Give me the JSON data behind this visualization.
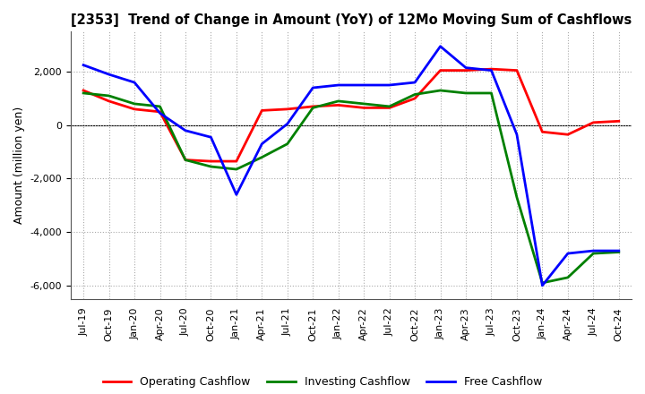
{
  "title": "[2353]  Trend of Change in Amount (YoY) of 12Mo Moving Sum of Cashflows",
  "ylabel": "Amount (million yen)",
  "labels": [
    "Jul-19",
    "Oct-19",
    "Jan-20",
    "Apr-20",
    "Jul-20",
    "Oct-20",
    "Jan-21",
    "Apr-21",
    "Jul-21",
    "Oct-21",
    "Jan-22",
    "Apr-22",
    "Jul-22",
    "Oct-22",
    "Jan-23",
    "Apr-23",
    "Jul-23",
    "Oct-23",
    "Jan-24",
    "Apr-24",
    "Jul-24",
    "Oct-24"
  ],
  "operating": [
    1300,
    900,
    600,
    500,
    -1300,
    -1350,
    -1350,
    550,
    600,
    700,
    750,
    650,
    650,
    1000,
    2050,
    2050,
    2100,
    2050,
    -250,
    -350,
    100,
    150
  ],
  "investing": [
    1200,
    1100,
    800,
    700,
    -1300,
    -1550,
    -1650,
    -1200,
    -700,
    650,
    900,
    800,
    700,
    1150,
    1300,
    1200,
    1200,
    -2700,
    -5900,
    -5700,
    -4800,
    -4750
  ],
  "free": [
    2250,
    1900,
    1600,
    450,
    -200,
    -450,
    -2600,
    -700,
    50,
    1400,
    1500,
    1500,
    1500,
    1600,
    2950,
    2150,
    2050,
    -350,
    -6000,
    -4800,
    -4700,
    -4700
  ],
  "operating_color": "#ff0000",
  "investing_color": "#008000",
  "free_color": "#0000ff",
  "ylim": [
    -6500,
    3500
  ],
  "yticks": [
    -6000,
    -4000,
    -2000,
    0,
    2000
  ],
  "bg_color": "#ffffff",
  "grid_color": "#aaaaaa",
  "line_width": 2.0
}
